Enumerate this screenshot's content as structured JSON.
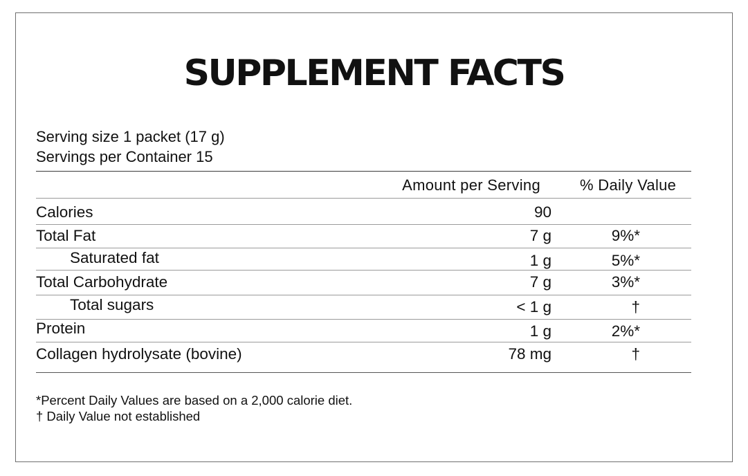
{
  "title": "SUPPLEMENT FACTS",
  "serving_size": "Serving size 1 packet (17 g)",
  "servings_per_container": "Servings per Container 15",
  "columns": {
    "amount": "Amount per Serving",
    "daily_value": "% Daily Value"
  },
  "rows": [
    {
      "label": "Calories",
      "amount": "90",
      "dv": ""
    },
    {
      "label": "Total Fat",
      "amount": "7 g",
      "dv": "9%*"
    },
    {
      "label": "Saturated fat",
      "amount": "1 g",
      "dv": "5%*"
    },
    {
      "label": "Total Carbohydrate",
      "amount": "7 g",
      "dv": "3%*"
    },
    {
      "label": "Total sugars",
      "amount": "< 1 g",
      "dv": "†"
    },
    {
      "label": "Protein",
      "amount": "1 g",
      "dv": "2%*"
    },
    {
      "label": "Collagen hydrolysate (bovine)",
      "amount": "78 mg",
      "dv": "†"
    }
  ],
  "footnotes": {
    "percent_note": "*Percent Daily Values are based on a 2,000 calorie diet.",
    "dagger_note": "† Daily Value not established"
  }
}
